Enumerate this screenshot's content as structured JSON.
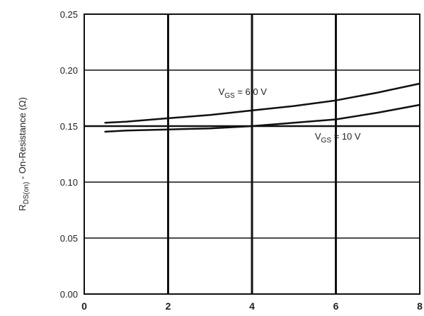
{
  "chart_data": {
    "type": "line",
    "title": "",
    "xlabel": "",
    "ylabel": {
      "main": "R",
      "sub": "DS(on)",
      "rest": " - On-Resistance (Ω)"
    },
    "xlim": [
      0,
      8
    ],
    "ylim": [
      0.0,
      0.25
    ],
    "x_ticks": [
      "0",
      "2",
      "4",
      "6",
      "8"
    ],
    "y_ticks": [
      "0.00",
      "0.05",
      "0.10",
      "0.15",
      "0.20",
      "0.25"
    ],
    "grid": true,
    "series": [
      {
        "name": "VGS = 6.0 V",
        "label": {
          "main": "V",
          "sub": "GS",
          "rest": " = 6.0 V"
        },
        "x": [
          0.5,
          1,
          2,
          3,
          4,
          5,
          6,
          7,
          8
        ],
        "y": [
          0.153,
          0.154,
          0.157,
          0.16,
          0.164,
          0.168,
          0.173,
          0.18,
          0.188
        ]
      },
      {
        "name": "VGS = 10 V",
        "label": {
          "main": "V",
          "sub": "GS",
          "rest": " = 10 V"
        },
        "x": [
          0.5,
          1,
          2,
          3,
          4,
          5,
          6,
          7,
          8
        ],
        "y": [
          0.145,
          0.146,
          0.147,
          0.148,
          0.15,
          0.153,
          0.156,
          0.162,
          0.169
        ]
      }
    ],
    "reference_lines": [
      0.15
    ]
  }
}
